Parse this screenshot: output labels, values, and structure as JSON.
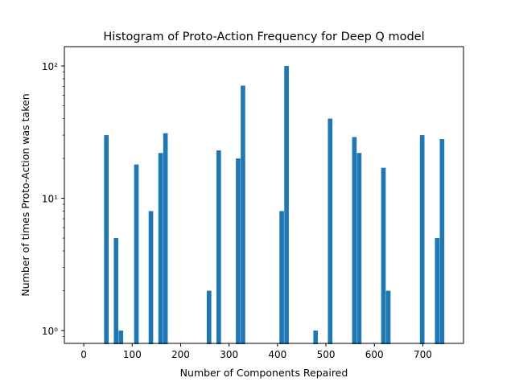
{
  "chart_data": {
    "type": "bar",
    "title": "Histogram of Proto-Action Frequency for Deep Q model",
    "xlabel": "Number of Components Repaired",
    "ylabel": "Number of times Proto-Action was taken",
    "xlim": [
      -40,
      784
    ],
    "ylim": [
      0.8,
      140
    ],
    "yscale": "log",
    "grid": false,
    "x_ticks": [
      0,
      100,
      200,
      300,
      400,
      500,
      600,
      700
    ],
    "y_ticks": [
      {
        "value": 1,
        "label": "10⁰"
      },
      {
        "value": 10,
        "label": "10¹"
      },
      {
        "value": 100,
        "label": "10²"
      }
    ],
    "bar_color": "#1f77b4",
    "bin_width": 9.4,
    "bins": [
      {
        "x": 42,
        "count": 30
      },
      {
        "x": 62,
        "count": 5
      },
      {
        "x": 72,
        "count": 1
      },
      {
        "x": 104,
        "count": 18
      },
      {
        "x": 134,
        "count": 8
      },
      {
        "x": 154,
        "count": 22
      },
      {
        "x": 164,
        "count": 31
      },
      {
        "x": 254,
        "count": 2
      },
      {
        "x": 274,
        "count": 23
      },
      {
        "x": 314,
        "count": 20
      },
      {
        "x": 324,
        "count": 71
      },
      {
        "x": 404,
        "count": 8
      },
      {
        "x": 414,
        "count": 100
      },
      {
        "x": 474,
        "count": 1
      },
      {
        "x": 504,
        "count": 40
      },
      {
        "x": 554,
        "count": 29
      },
      {
        "x": 564,
        "count": 22
      },
      {
        "x": 614,
        "count": 17
      },
      {
        "x": 624,
        "count": 2
      },
      {
        "x": 694,
        "count": 30
      },
      {
        "x": 725,
        "count": 5
      },
      {
        "x": 735,
        "count": 28
      }
    ]
  }
}
